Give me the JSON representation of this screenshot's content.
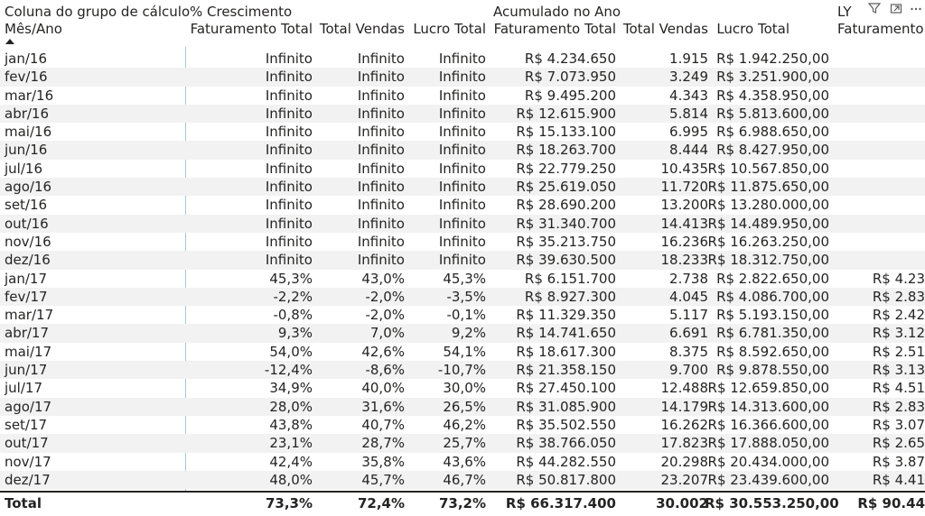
{
  "header": {
    "group_label": "Coluna do grupo de cálculo",
    "row_label": "Mês/Ano",
    "group_growth": "% Crescimento",
    "group_ytd": "Acumulado no Ano",
    "group_ly": "LY",
    "col_fat": "Faturamento Total",
    "col_vendas": "Total Vendas",
    "col_lucro": "Lucro Total",
    "col_fat_short": "Faturamento"
  },
  "icons": {
    "filter": "filter-icon",
    "focus": "focus-mode-icon",
    "more": "more-options-icon"
  },
  "rows": [
    {
      "m": "jan/16",
      "g1": "Infinito",
      "g2": "Infinito",
      "g3": "Infinito",
      "a1": "R$ 4.234.650",
      "a2": "1.915",
      "a3": "R$ 1.942.250,00",
      "ly": ""
    },
    {
      "m": "fev/16",
      "g1": "Infinito",
      "g2": "Infinito",
      "g3": "Infinito",
      "a1": "R$ 7.073.950",
      "a2": "3.249",
      "a3": "R$ 3.251.900,00",
      "ly": ""
    },
    {
      "m": "mar/16",
      "g1": "Infinito",
      "g2": "Infinito",
      "g3": "Infinito",
      "a1": "R$ 9.495.200",
      "a2": "4.343",
      "a3": "R$ 4.358.950,00",
      "ly": ""
    },
    {
      "m": "abr/16",
      "g1": "Infinito",
      "g2": "Infinito",
      "g3": "Infinito",
      "a1": "R$ 12.615.900",
      "a2": "5.814",
      "a3": "R$ 5.813.600,00",
      "ly": ""
    },
    {
      "m": "mai/16",
      "g1": "Infinito",
      "g2": "Infinito",
      "g3": "Infinito",
      "a1": "R$ 15.133.100",
      "a2": "6.995",
      "a3": "R$ 6.988.650,00",
      "ly": ""
    },
    {
      "m": "jun/16",
      "g1": "Infinito",
      "g2": "Infinito",
      "g3": "Infinito",
      "a1": "R$ 18.263.700",
      "a2": "8.444",
      "a3": "R$ 8.427.950,00",
      "ly": ""
    },
    {
      "m": "jul/16",
      "g1": "Infinito",
      "g2": "Infinito",
      "g3": "Infinito",
      "a1": "R$ 22.779.250",
      "a2": "10.435",
      "a3": "R$ 10.567.850,00",
      "ly": ""
    },
    {
      "m": "ago/16",
      "g1": "Infinito",
      "g2": "Infinito",
      "g3": "Infinito",
      "a1": "R$ 25.619.050",
      "a2": "11.720",
      "a3": "R$ 11.875.650,00",
      "ly": ""
    },
    {
      "m": "set/16",
      "g1": "Infinito",
      "g2": "Infinito",
      "g3": "Infinito",
      "a1": "R$ 28.690.200",
      "a2": "13.200",
      "a3": "R$ 13.280.000,00",
      "ly": ""
    },
    {
      "m": "out/16",
      "g1": "Infinito",
      "g2": "Infinito",
      "g3": "Infinito",
      "a1": "R$ 31.340.700",
      "a2": "14.413",
      "a3": "R$ 14.489.950,00",
      "ly": ""
    },
    {
      "m": "nov/16",
      "g1": "Infinito",
      "g2": "Infinito",
      "g3": "Infinito",
      "a1": "R$ 35.213.750",
      "a2": "16.236",
      "a3": "R$ 16.263.250,00",
      "ly": ""
    },
    {
      "m": "dez/16",
      "g1": "Infinito",
      "g2": "Infinito",
      "g3": "Infinito",
      "a1": "R$ 39.630.500",
      "a2": "18.233",
      "a3": "R$ 18.312.750,00",
      "ly": ""
    },
    {
      "m": "jan/17",
      "g1": "45,3%",
      "g2": "43,0%",
      "g3": "45,3%",
      "a1": "R$ 6.151.700",
      "a2": "2.738",
      "a3": "R$ 2.822.650,00",
      "ly": "R$ 4.23"
    },
    {
      "m": "fev/17",
      "g1": "-2,2%",
      "g2": "-2,0%",
      "g3": "-3,5%",
      "a1": "R$ 8.927.300",
      "a2": "4.045",
      "a3": "R$ 4.086.700,00",
      "ly": "R$ 2.83"
    },
    {
      "m": "mar/17",
      "g1": "-0,8%",
      "g2": "-2,0%",
      "g3": "-0,1%",
      "a1": "R$ 11.329.350",
      "a2": "5.117",
      "a3": "R$ 5.193.150,00",
      "ly": "R$ 2.42"
    },
    {
      "m": "abr/17",
      "g1": "9,3%",
      "g2": "7,0%",
      "g3": "9,2%",
      "a1": "R$ 14.741.650",
      "a2": "6.691",
      "a3": "R$ 6.781.350,00",
      "ly": "R$ 3.12"
    },
    {
      "m": "mai/17",
      "g1": "54,0%",
      "g2": "42,6%",
      "g3": "54,1%",
      "a1": "R$ 18.617.300",
      "a2": "8.375",
      "a3": "R$ 8.592.650,00",
      "ly": "R$ 2.51"
    },
    {
      "m": "jun/17",
      "g1": "-12,4%",
      "g2": "-8,6%",
      "g3": "-10,7%",
      "a1": "R$ 21.358.150",
      "a2": "9.700",
      "a3": "R$ 9.878.550,00",
      "ly": "R$ 3.13"
    },
    {
      "m": "jul/17",
      "g1": "34,9%",
      "g2": "40,0%",
      "g3": "30,0%",
      "a1": "R$ 27.450.100",
      "a2": "12.488",
      "a3": "R$ 12.659.850,00",
      "ly": "R$ 4.51"
    },
    {
      "m": "ago/17",
      "g1": "28,0%",
      "g2": "31,6%",
      "g3": "26,5%",
      "a1": "R$ 31.085.900",
      "a2": "14.179",
      "a3": "R$ 14.313.600,00",
      "ly": "R$ 2.83"
    },
    {
      "m": "set/17",
      "g1": "43,8%",
      "g2": "40,7%",
      "g3": "46,2%",
      "a1": "R$ 35.502.550",
      "a2": "16.262",
      "a3": "R$ 16.366.600,00",
      "ly": "R$ 3.07"
    },
    {
      "m": "out/17",
      "g1": "23,1%",
      "g2": "28,7%",
      "g3": "25,7%",
      "a1": "R$ 38.766.050",
      "a2": "17.823",
      "a3": "R$ 17.888.050,00",
      "ly": "R$ 2.65"
    },
    {
      "m": "nov/17",
      "g1": "42,4%",
      "g2": "35,8%",
      "g3": "43,6%",
      "a1": "R$ 44.282.550",
      "a2": "20.298",
      "a3": "R$ 20.434.000,00",
      "ly": "R$ 3.87"
    },
    {
      "m": "dez/17",
      "g1": "48,0%",
      "g2": "45,7%",
      "g3": "46,7%",
      "a1": "R$ 50.817.800",
      "a2": "23.207",
      "a3": "R$ 23.439.600,00",
      "ly": "R$ 4.41"
    }
  ],
  "total": {
    "m": "Total",
    "g1": "73,3%",
    "g2": "72,4%",
    "g3": "73,2%",
    "a1": "R$ 66.317.400",
    "a2": "30.002",
    "a3": "R$ 30.553.250,00",
    "ly": "R$ 90.44"
  }
}
